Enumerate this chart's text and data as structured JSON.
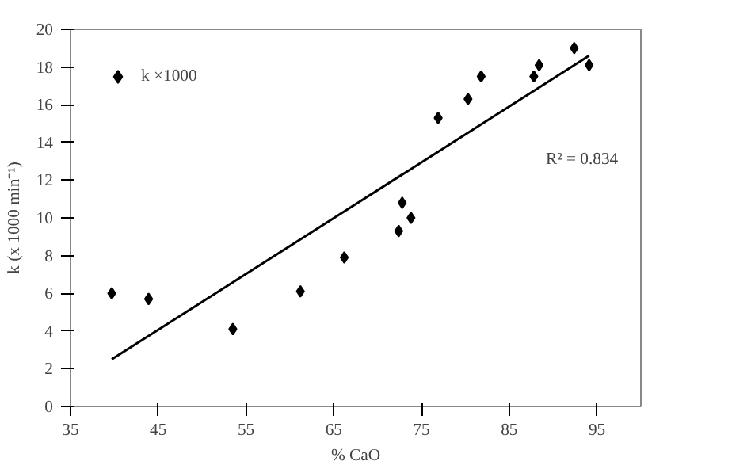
{
  "chart_data": {
    "type": "scatter",
    "xlabel": "% CaO",
    "ylabel": "k (x 1000 min⁻¹)",
    "xlim": [
      35,
      100
    ],
    "xticks": [
      35,
      45,
      55,
      65,
      75,
      85,
      95
    ],
    "ylim": [
      0,
      20
    ],
    "yticks": [
      0,
      2,
      4,
      6,
      8,
      10,
      12,
      14,
      16,
      18,
      20
    ],
    "grid": false,
    "legend": "top left",
    "series": [
      {
        "name": "k ×1000",
        "color": "#000000",
        "marker": "diamond",
        "x": [
          39.7,
          43.9,
          53.5,
          61.2,
          66.2,
          72.4,
          72.8,
          73.8,
          76.9,
          80.3,
          81.8,
          87.8,
          88.4,
          92.4,
          94.1
        ],
        "values": [
          6.0,
          5.7,
          4.1,
          6.1,
          7.9,
          9.3,
          10.8,
          10.0,
          15.3,
          16.3,
          17.5,
          17.5,
          18.1,
          19.0,
          18.1
        ]
      },
      {
        "type": "line",
        "color": "#000000",
        "marker": "none",
        "x": [
          39.7,
          94.1
        ],
        "values": [
          2.5,
          18.6
        ]
      }
    ],
    "annotations": [
      "R² = 0.834"
    ]
  }
}
